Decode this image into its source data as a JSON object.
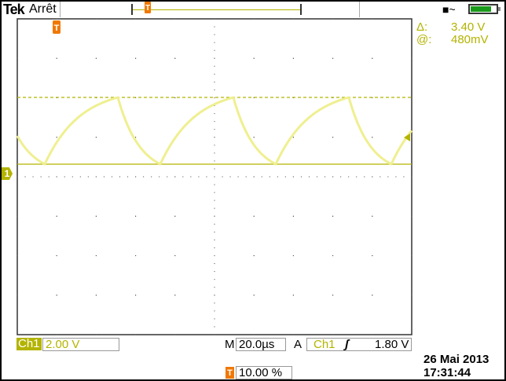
{
  "header": {
    "brand": "Tek",
    "status": "Arrêt",
    "power_icon": "ac-plug-icon",
    "battery_icon": "battery-icon",
    "battery_level": 0.8
  },
  "cursor_readout": {
    "delta_label": "Δ:",
    "delta_value": "3.40 V",
    "at_label": "@:",
    "at_value": "480mV"
  },
  "channel": {
    "label": "Ch1",
    "marker": "1",
    "scale": "2.00 V",
    "color": "#b3b300"
  },
  "timebase": {
    "prefix": "M",
    "value": "20.0µs"
  },
  "trigger": {
    "prefix": "A",
    "source": "Ch1",
    "slope_icon": "rising-edge-icon",
    "level": "1.80 V",
    "marker": "T",
    "position": "10.00 %",
    "color": "#f07800"
  },
  "datetime": {
    "date": "26 Mai  2013",
    "time": "17:31:44"
  }
}
